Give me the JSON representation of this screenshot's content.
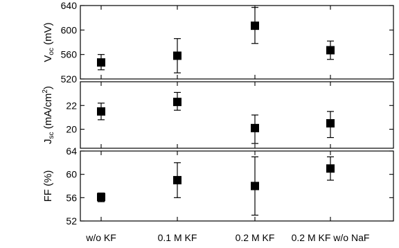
{
  "chart_data": {
    "type": "scatter",
    "categories": [
      "w/o KF",
      "0.1 M KF",
      "0.2 M KF",
      "0.2 M KF w/o NaF"
    ],
    "panels": [
      {
        "id": "voc",
        "ylabel": {
          "main": "V",
          "sub": "oc",
          "unit": " (mV)"
        },
        "ylim": [
          520,
          640
        ],
        "yticks": [
          520,
          560,
          600,
          640
        ],
        "yticklabels": [
          "520",
          "560",
          "600",
          "640"
        ],
        "values": [
          547,
          558,
          607,
          567
        ],
        "err_low": [
          535,
          530,
          578,
          552
        ],
        "err_high": [
          560,
          586,
          637,
          582
        ]
      },
      {
        "id": "jsc",
        "ylabel": {
          "main": "J",
          "sub": "sc",
          "unit": " (mA/cm",
          "sup": "2",
          "close": ")"
        },
        "ylim": [
          18.4,
          24.0
        ],
        "yticks": [
          20,
          22
        ],
        "yticklabels": [
          "20",
          "22"
        ],
        "values": [
          21.5,
          22.3,
          20.1,
          20.5
        ],
        "err_low": [
          20.8,
          21.6,
          18.8,
          19.3
        ],
        "err_high": [
          22.2,
          23.1,
          21.2,
          21.5
        ]
      },
      {
        "id": "ff",
        "ylabel": {
          "main": "FF (%)"
        },
        "ylim": [
          52,
          64
        ],
        "yticks": [
          52,
          56,
          60,
          64
        ],
        "yticklabels": [
          "52",
          "56",
          "60",
          "64"
        ],
        "values": [
          56.1,
          59,
          58,
          61
        ],
        "err_low": [
          55.3,
          56,
          53,
          59
        ],
        "err_high": [
          56.8,
          62,
          63,
          63
        ]
      }
    ]
  }
}
